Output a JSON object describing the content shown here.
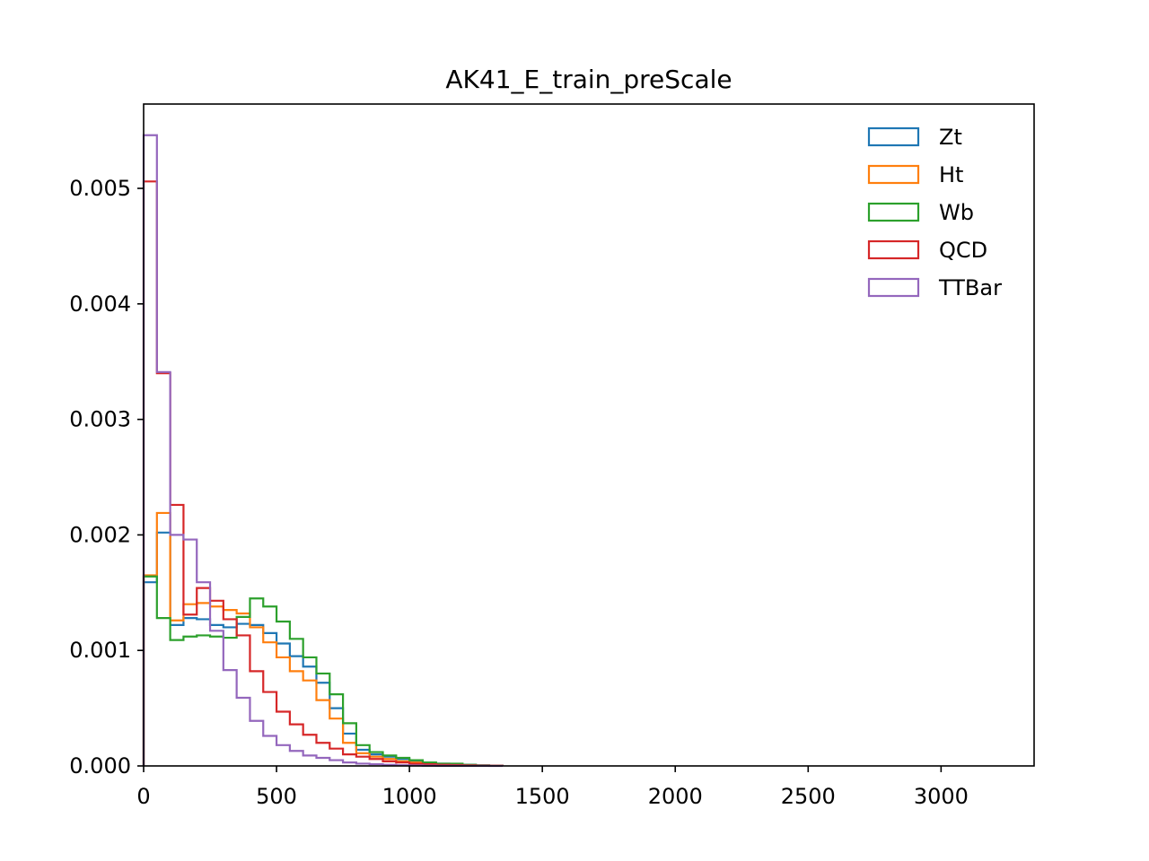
{
  "chart_data": {
    "type": "histogram-step",
    "title": "AK41_E_train_preScale",
    "xlabel": "",
    "ylabel": "",
    "xlim": [
      0,
      3350
    ],
    "ylim": [
      0,
      0.00573
    ],
    "bin_width": 50,
    "x_ticks": [
      0,
      500,
      1000,
      1500,
      2000,
      2500,
      3000
    ],
    "x_tick_labels": [
      "0",
      "500",
      "1000",
      "1500",
      "2000",
      "2500",
      "3000"
    ],
    "y_ticks": [
      0,
      0.001,
      0.002,
      0.003,
      0.004,
      0.005
    ],
    "y_tick_labels": [
      "0.000",
      "0.001",
      "0.002",
      "0.003",
      "0.004",
      "0.005"
    ],
    "legend_position": "top-right",
    "series": [
      {
        "name": "Zt",
        "color": "#1f77b4",
        "values": [
          0.00159,
          0.00202,
          0.00122,
          0.00128,
          0.00127,
          0.00122,
          0.0012,
          0.00123,
          0.00122,
          0.00115,
          0.00106,
          0.00095,
          0.00086,
          0.00072,
          0.0005,
          0.00028,
          0.00014,
          0.0001,
          8e-05,
          6e-05,
          4e-05,
          3e-05,
          2e-05,
          1e-05,
          1e-05,
          5e-06,
          3e-06
        ]
      },
      {
        "name": "Ht",
        "color": "#ff7f0e",
        "values": [
          0.00165,
          0.00219,
          0.00126,
          0.0014,
          0.00141,
          0.00138,
          0.00135,
          0.00132,
          0.0012,
          0.00107,
          0.00094,
          0.00082,
          0.00074,
          0.00057,
          0.00041,
          0.0002,
          0.00011,
          8e-05,
          6e-05,
          4e-05,
          3e-05,
          2e-05,
          1e-05,
          1e-05,
          5e-06,
          3e-06,
          2e-06
        ]
      },
      {
        "name": "Wb",
        "color": "#2ca02c",
        "values": [
          0.00164,
          0.00128,
          0.00109,
          0.00112,
          0.00113,
          0.00112,
          0.00111,
          0.00129,
          0.00145,
          0.00138,
          0.00125,
          0.0011,
          0.00094,
          0.0008,
          0.00062,
          0.00037,
          0.00018,
          0.00012,
          9e-05,
          7e-05,
          5e-05,
          3e-05,
          2e-05,
          2e-05,
          1e-05,
          5e-06,
          3e-06
        ]
      },
      {
        "name": "QCD",
        "color": "#d62728",
        "values": [
          0.00506,
          0.0034,
          0.00226,
          0.00131,
          0.00154,
          0.00143,
          0.00127,
          0.00113,
          0.00082,
          0.00064,
          0.00047,
          0.00036,
          0.00027,
          0.0002,
          0.00015,
          0.0001,
          8e-05,
          6e-05,
          4e-05,
          3e-05,
          2e-05,
          1.5e-05,
          1e-05,
          8e-06,
          5e-06,
          3e-06,
          2e-06
        ]
      },
      {
        "name": "TTBar",
        "color": "#9467bd",
        "values": [
          0.00546,
          0.00341,
          0.002,
          0.00196,
          0.00159,
          0.00117,
          0.00083,
          0.00059,
          0.00039,
          0.00026,
          0.00018,
          0.00013,
          9e-05,
          7e-05,
          5e-05,
          3e-05,
          2e-05,
          1.5e-05,
          1e-05,
          6e-06,
          4e-06,
          2e-06,
          1e-06,
          1e-06,
          5e-07,
          3e-07,
          2e-07
        ]
      }
    ]
  }
}
